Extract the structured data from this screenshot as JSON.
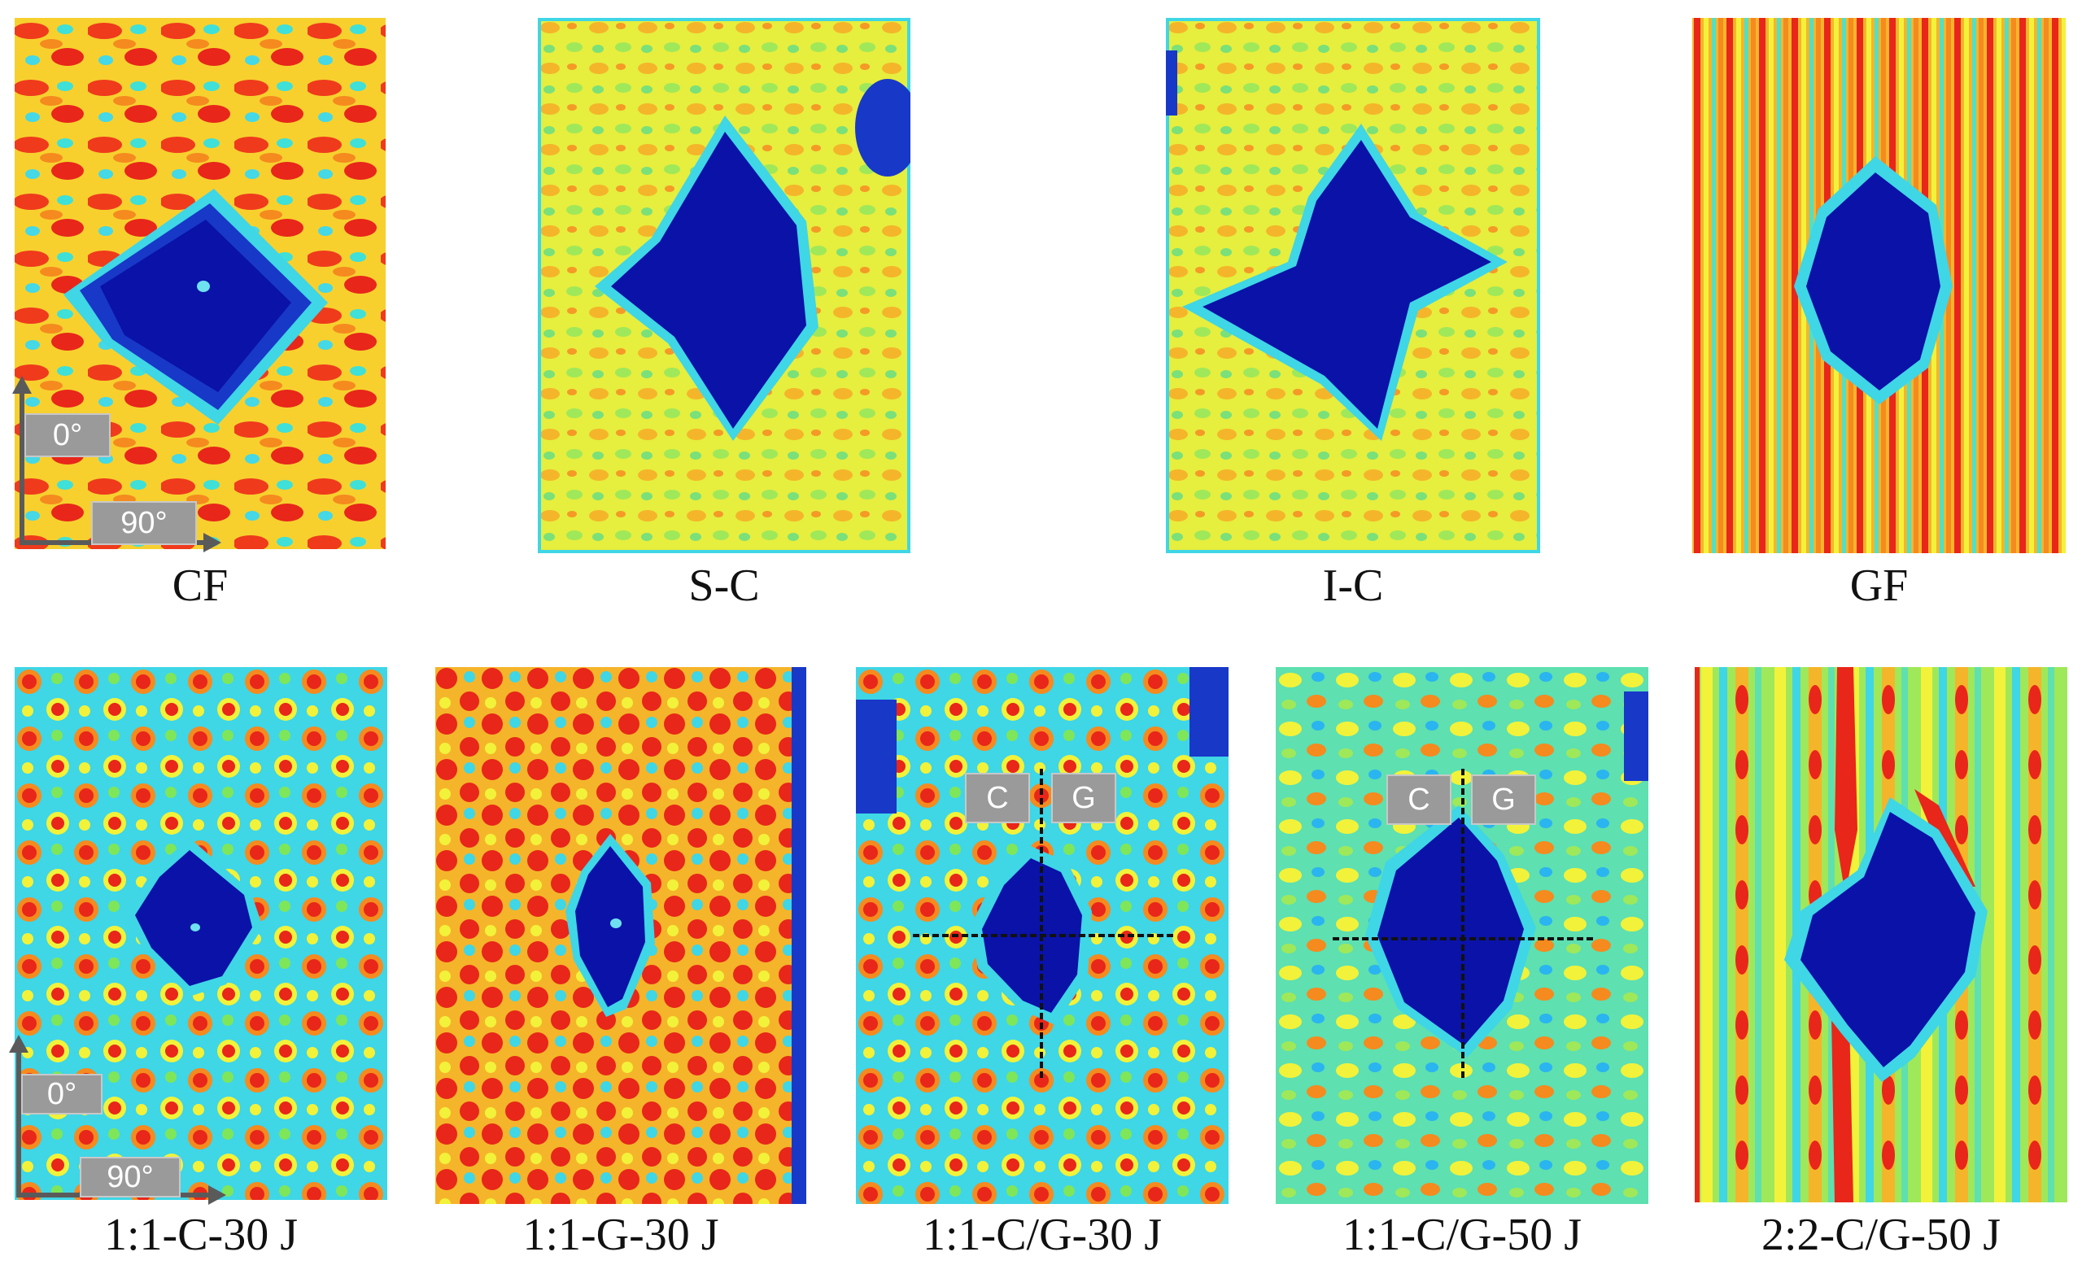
{
  "panels": [
    {
      "caption": "CF"
    },
    {
      "caption": "S-C"
    },
    {
      "caption": "I-C"
    },
    {
      "caption": "GF"
    },
    {
      "caption": "1:1-C-30 J"
    },
    {
      "caption": "1:1-G-30 J"
    },
    {
      "caption": "1:1-C/G-30 J"
    },
    {
      "caption": "1:1-C/G-50 J"
    },
    {
      "caption": "2:2-C/G-50 J"
    }
  ],
  "axis_labels": {
    "zero": "0°",
    "ninety": "90°"
  },
  "region_labels": {
    "carbon": "C",
    "glass": "G"
  },
  "colors": {
    "damage_blue": "#0a12a8",
    "cyan": "#19d3e8",
    "green": "#7fe65a",
    "yellow": "#f2f23a",
    "orange": "#f58a1f",
    "red": "#e8261a"
  }
}
